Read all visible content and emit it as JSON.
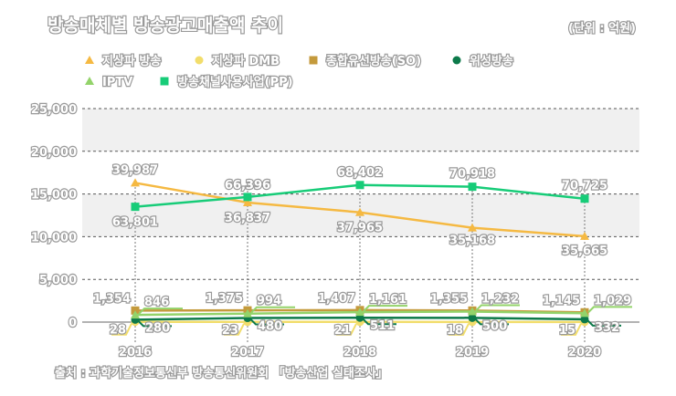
{
  "chart_data": {
    "type": "line",
    "title": "방송매체별 방송광고매출액 추이",
    "unit": "(단위 : 억원)",
    "source": "출처 : 과학기술정보통신부 방송통신위원회 「방송산업 실태조사」",
    "categories": [
      "2016",
      "2017",
      "2018",
      "2019",
      "2020"
    ],
    "ylim": [
      0,
      25000
    ],
    "yticks": [
      "0",
      "5,000",
      "10,000",
      "15,000",
      "20,000",
      "25,000"
    ],
    "grid": true,
    "legend_position": "top-left",
    "series": [
      {
        "name": "지상파 방송",
        "color": "#f5b942",
        "marker": "triangle",
        "values": [
          39987,
          36837,
          37965,
          35168,
          35665
        ],
        "plotted": [
          16300,
          14000,
          12850,
          11050,
          10050
        ],
        "labels": [
          "39,987",
          "36,837",
          "37,965",
          "35,168",
          "35,665"
        ]
      },
      {
        "name": "지상파 DMB",
        "color": "#f2dd6b",
        "marker": "circle",
        "values": [
          28,
          23,
          21,
          18,
          15
        ],
        "labels": [
          "28",
          "23",
          "21",
          "18",
          "15"
        ]
      },
      {
        "name": "종합유선방송(SO)",
        "color": "#c49a3c",
        "marker": "square",
        "values": [
          1354,
          1375,
          1407,
          1355,
          1145
        ],
        "labels": [
          "1,354",
          "1,375",
          "1,407",
          "1,355",
          "1,145"
        ]
      },
      {
        "name": "위성방송",
        "color": "#0d7a4a",
        "marker": "circle",
        "values": [
          280,
          480,
          511,
          500,
          332
        ],
        "labels": [
          "280",
          "480",
          "511",
          "500",
          "332"
        ]
      },
      {
        "name": "IPTV",
        "color": "#93d36a",
        "marker": "triangle",
        "values": [
          846,
          994,
          1161,
          1232,
          1029
        ],
        "labels": [
          "846",
          "994",
          "1,161",
          "1,232",
          "1,029"
        ]
      },
      {
        "name": "방송채널사용사업(PP)",
        "color": "#17cc78",
        "marker": "square",
        "values": [
          63801,
          66396,
          68402,
          70918,
          70725
        ],
        "plotted": [
          13500,
          14650,
          16050,
          15850,
          14450
        ],
        "labels": [
          "63,801",
          "66,396",
          "68,402",
          "70,918",
          "70,725"
        ]
      }
    ]
  }
}
